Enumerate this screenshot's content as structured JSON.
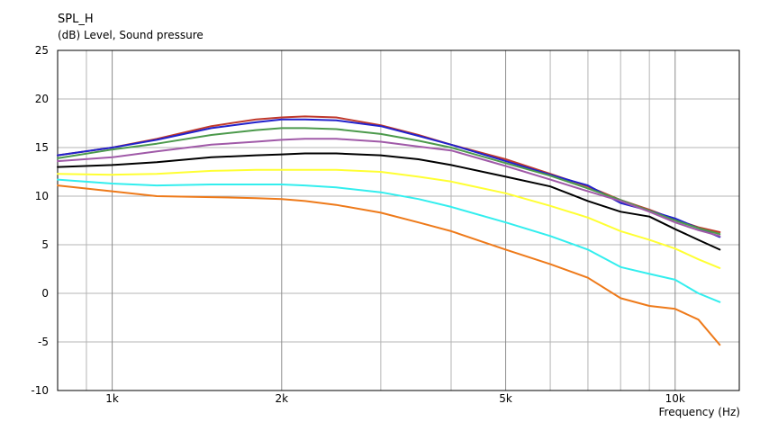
{
  "chart_data": {
    "type": "line",
    "title": "SPL_H",
    "ylabel": "(dB)  Level, Sound pressure",
    "xlabel": "Frequency  (Hz)",
    "x_scale": "log",
    "xlim": [
      800,
      13000
    ],
    "ylim": [
      -10,
      25
    ],
    "y_ticks": [
      25,
      20,
      15,
      10,
      5,
      0,
      -5,
      -10
    ],
    "y_tick_labels": [
      "25",
      "20",
      "15",
      "10",
      "5",
      "0",
      "-5",
      "-10"
    ],
    "x_ticks": [
      1000,
      2000,
      5000,
      10000
    ],
    "x_tick_labels": [
      "1k",
      "2k",
      "5k",
      "10k"
    ],
    "x_minor_grid": [
      900,
      3000,
      4000,
      6000,
      7000,
      8000,
      9000
    ],
    "grid": true,
    "legend": "none",
    "series": [
      {
        "color": "#c0392b",
        "x": [
          800,
          1000,
          1200,
          1500,
          1800,
          2000,
          2200,
          2500,
          3000,
          3500,
          4000,
          5000,
          6000,
          7000,
          8000,
          9000,
          10000,
          11000,
          12000
        ],
        "y": [
          14.2,
          15.0,
          15.9,
          17.2,
          17.9,
          18.1,
          18.2,
          18.1,
          17.3,
          16.3,
          15.3,
          13.8,
          12.3,
          11.0,
          9.6,
          8.6,
          7.6,
          6.8,
          6.3
        ]
      },
      {
        "color": "#2222cc",
        "x": [
          800,
          1000,
          1200,
          1500,
          1800,
          2000,
          2200,
          2500,
          3000,
          3500,
          4000,
          5000,
          6000,
          7000,
          8000,
          9000,
          10000,
          11000,
          12000
        ],
        "y": [
          14.2,
          15.0,
          15.8,
          17.0,
          17.6,
          17.9,
          17.9,
          17.8,
          17.2,
          16.2,
          15.3,
          13.6,
          12.2,
          11.1,
          9.3,
          8.5,
          7.7,
          6.7,
          5.8
        ]
      },
      {
        "color": "#4c9a4c",
        "x": [
          800,
          1000,
          1200,
          1500,
          1800,
          2000,
          2200,
          2500,
          3000,
          3500,
          4000,
          5000,
          6000,
          7000,
          8000,
          9000,
          10000,
          11000,
          12000
        ],
        "y": [
          13.9,
          14.8,
          15.4,
          16.3,
          16.8,
          17.0,
          17.0,
          16.9,
          16.4,
          15.7,
          15.0,
          13.4,
          12.1,
          10.8,
          9.6,
          8.5,
          7.5,
          6.7,
          6.1
        ]
      },
      {
        "color": "#a05aa8",
        "x": [
          800,
          1000,
          1200,
          1500,
          1800,
          2000,
          2200,
          2500,
          3000,
          3500,
          4000,
          5000,
          6000,
          7000,
          8000,
          9000,
          10000,
          11000,
          12000
        ],
        "y": [
          13.6,
          14.0,
          14.6,
          15.3,
          15.6,
          15.8,
          15.9,
          15.9,
          15.6,
          15.1,
          14.7,
          13.1,
          11.7,
          10.5,
          9.5,
          8.4,
          7.3,
          6.5,
          5.9
        ]
      },
      {
        "color": "#000000",
        "x": [
          800,
          1000,
          1200,
          1500,
          1800,
          2000,
          2200,
          2500,
          3000,
          3500,
          4000,
          5000,
          6000,
          7000,
          8000,
          9000,
          10000,
          11000,
          12000
        ],
        "y": [
          13.0,
          13.2,
          13.5,
          14.0,
          14.2,
          14.3,
          14.4,
          14.4,
          14.2,
          13.8,
          13.2,
          12.0,
          11.0,
          9.5,
          8.4,
          7.9,
          6.6,
          5.5,
          4.5
        ]
      },
      {
        "color": "#ffff33",
        "x": [
          800,
          1000,
          1200,
          1500,
          1800,
          2000,
          2200,
          2500,
          3000,
          3500,
          4000,
          5000,
          6000,
          7000,
          8000,
          9000,
          10000,
          11000,
          12000
        ],
        "y": [
          12.3,
          12.2,
          12.3,
          12.6,
          12.7,
          12.7,
          12.7,
          12.7,
          12.5,
          12.0,
          11.5,
          10.3,
          9.0,
          7.8,
          6.4,
          5.5,
          4.6,
          3.5,
          2.6
        ]
      },
      {
        "color": "#33eeee",
        "x": [
          800,
          1000,
          1200,
          1500,
          1800,
          2000,
          2200,
          2500,
          3000,
          3500,
          4000,
          5000,
          6000,
          7000,
          8000,
          9000,
          10000,
          11000,
          12000
        ],
        "y": [
          11.7,
          11.3,
          11.1,
          11.2,
          11.2,
          11.2,
          11.1,
          10.9,
          10.4,
          9.7,
          8.9,
          7.3,
          5.9,
          4.5,
          2.7,
          2.0,
          1.4,
          0.0,
          -0.9
        ]
      },
      {
        "color": "#ee7a1a",
        "x": [
          800,
          1000,
          1200,
          1500,
          1800,
          2000,
          2200,
          2500,
          3000,
          3500,
          4000,
          5000,
          6000,
          7000,
          8000,
          9000,
          10000,
          11000,
          12000
        ],
        "y": [
          11.1,
          10.5,
          10.0,
          9.9,
          9.8,
          9.7,
          9.5,
          9.1,
          8.3,
          7.3,
          6.4,
          4.5,
          3.0,
          1.6,
          -0.5,
          -1.3,
          -1.6,
          -2.7,
          -5.3
        ]
      }
    ]
  }
}
